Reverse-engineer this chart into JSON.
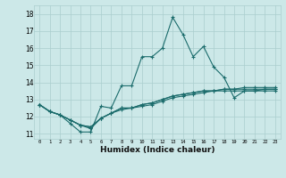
{
  "xlabel": "Humidex (Indice chaleur)",
  "xlim": [
    -0.5,
    23.5
  ],
  "ylim": [
    10.7,
    18.5
  ],
  "yticks": [
    11,
    12,
    13,
    14,
    15,
    16,
    17,
    18
  ],
  "xticks": [
    0,
    1,
    2,
    3,
    4,
    5,
    6,
    7,
    8,
    9,
    10,
    11,
    12,
    13,
    14,
    15,
    16,
    17,
    18,
    19,
    20,
    21,
    22,
    23
  ],
  "bg_color": "#cce8e8",
  "line_color": "#1a6b6b",
  "grid_color": "#aacece",
  "lines": [
    [
      12.7,
      12.3,
      12.1,
      11.6,
      11.1,
      11.1,
      12.6,
      12.5,
      13.8,
      13.8,
      15.5,
      15.5,
      16.0,
      17.8,
      16.8,
      15.5,
      16.1,
      14.9,
      14.3,
      13.1,
      13.5,
      13.5,
      13.6,
      13.6
    ],
    [
      12.7,
      12.3,
      12.1,
      11.8,
      11.5,
      11.3,
      11.9,
      12.2,
      12.5,
      12.5,
      12.7,
      12.8,
      13.0,
      13.2,
      13.3,
      13.4,
      13.5,
      13.5,
      13.6,
      13.6,
      13.6,
      13.6,
      13.6,
      13.6
    ],
    [
      12.7,
      12.3,
      12.1,
      11.8,
      11.5,
      11.4,
      11.9,
      12.2,
      12.4,
      12.5,
      12.6,
      12.7,
      12.9,
      13.1,
      13.2,
      13.3,
      13.4,
      13.5,
      13.6,
      13.6,
      13.7,
      13.7,
      13.7,
      13.7
    ],
    [
      12.7,
      12.3,
      12.1,
      11.8,
      11.5,
      11.4,
      11.9,
      12.2,
      12.5,
      12.5,
      12.7,
      12.8,
      13.0,
      13.2,
      13.3,
      13.4,
      13.5,
      13.5,
      13.5,
      13.5,
      13.5,
      13.5,
      13.5,
      13.5
    ]
  ]
}
